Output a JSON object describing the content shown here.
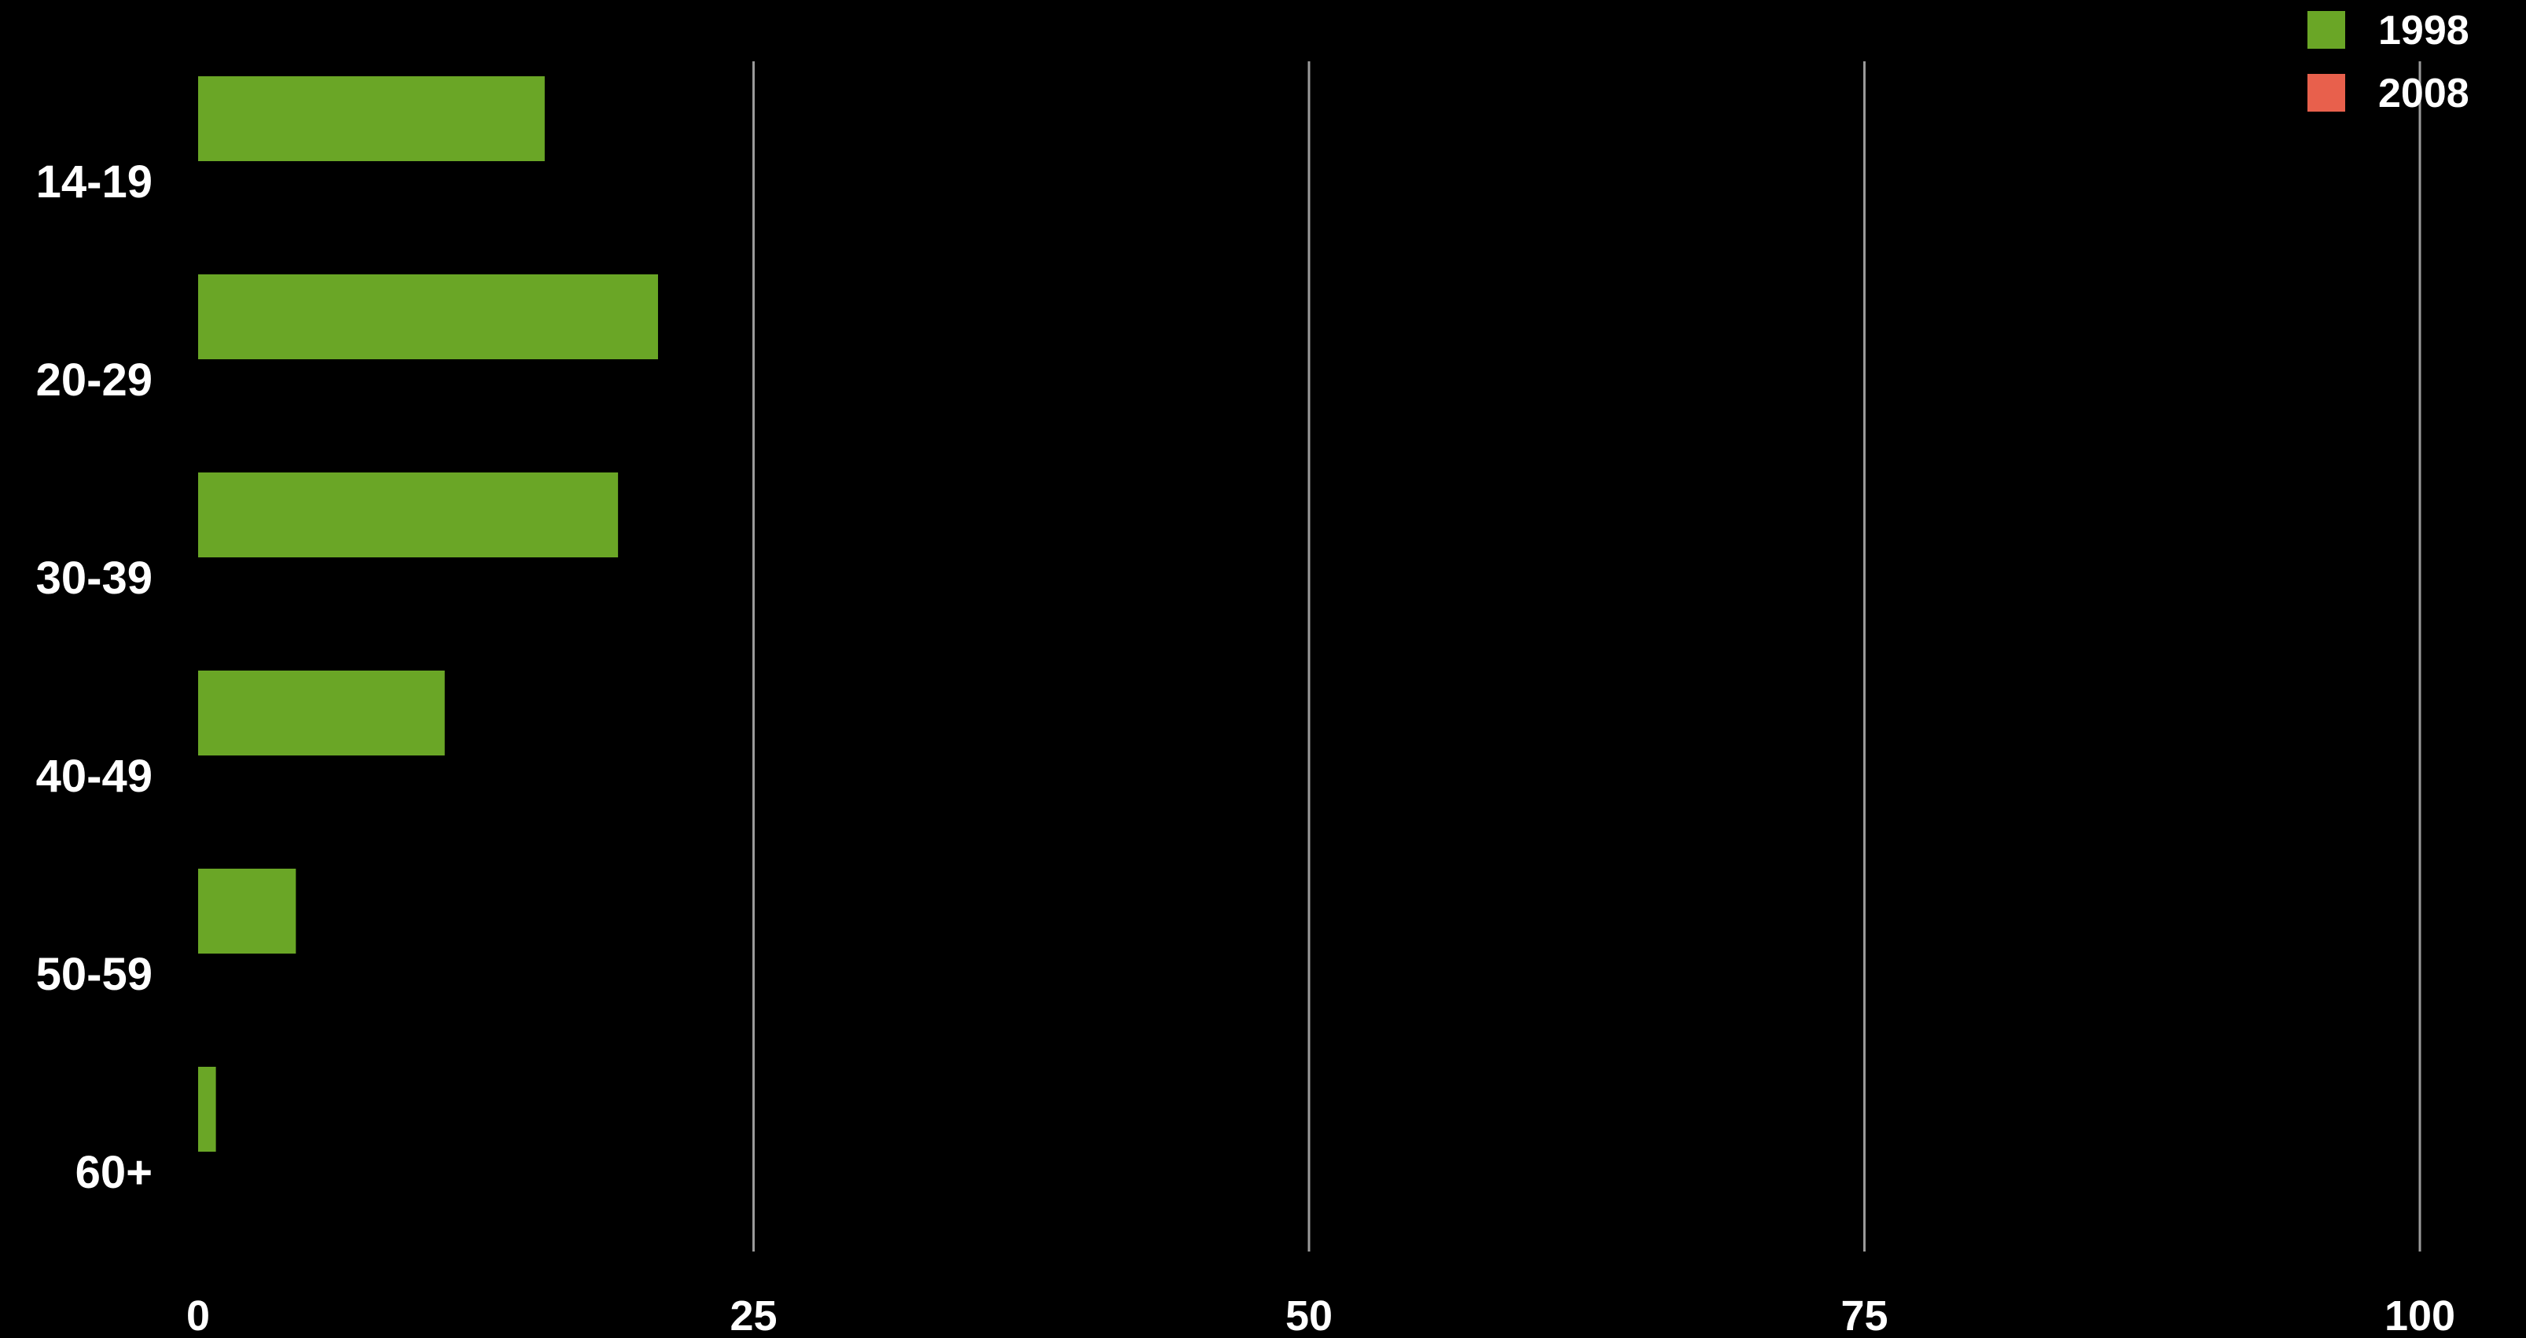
{
  "chart_data": {
    "type": "bar",
    "orientation": "horizontal",
    "title": "",
    "xlabel": "",
    "ylabel": "",
    "categories": [
      "14-19",
      "20-29",
      "30-39",
      "40-49",
      "50-59",
      "60+"
    ],
    "series": [
      {
        "name": "1998",
        "color": "#6aa626",
        "values": [
          15.6,
          20.7,
          18.9,
          11.1,
          4.4,
          0.8
        ]
      },
      {
        "name": "2008",
        "color": "#e8604c",
        "values": [
          0,
          0,
          0,
          0,
          0,
          0
        ]
      }
    ],
    "xlim": [
      0,
      100
    ],
    "xticks": [
      0,
      25,
      50,
      75,
      100
    ],
    "grid": "vertical",
    "legend_position": "top-right"
  }
}
